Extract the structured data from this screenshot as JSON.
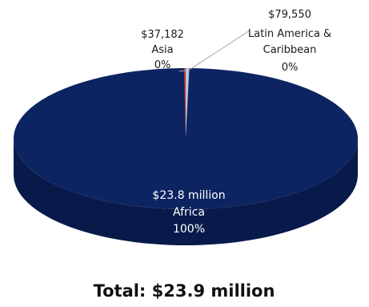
{
  "chart_data": {
    "type": "pie",
    "three_d": true,
    "slices": [
      {
        "region": "Africa",
        "amount_label": "$23.8 million",
        "value": 23800000,
        "percent_label": "100%",
        "color": "#0d2462"
      },
      {
        "region": "Asia",
        "amount_label": "$37,182",
        "value": 37182,
        "percent_label": "0%",
        "color": "#c0392b"
      },
      {
        "region": "Latin America & Caribbean",
        "amount_label": "$79,550",
        "value": 79550,
        "percent_label": "0%",
        "color": "#b9c4dd"
      }
    ],
    "total_label": "Total: $23.9 million"
  },
  "colors": {
    "top_face": "#0d2462",
    "side_face": "#081a4a",
    "leader_line": "#9aa3b8"
  }
}
